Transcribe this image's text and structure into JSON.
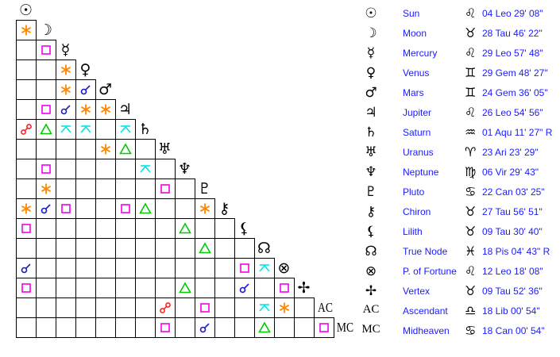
{
  "colors": {
    "conjunction": "#1a1acc",
    "opposition": "#ff2020",
    "trine": "#00cc00",
    "square": "#ee00ee",
    "sextile": "#ff8800",
    "quincunx": "#00e5e5",
    "legend_text": "#1a1aff"
  },
  "planets": [
    {
      "name": "Sun",
      "glyph": "☉",
      "icon": "sun-icon",
      "sign": "♌",
      "sign_icon": "leo-icon",
      "position": "04 Leo 29' 08\""
    },
    {
      "name": "Moon",
      "glyph": "☽",
      "icon": "moon-icon",
      "sign": "♉",
      "sign_icon": "taurus-icon",
      "position": "28 Tau 46' 22\""
    },
    {
      "name": "Mercury",
      "glyph": "☿",
      "icon": "mercury-icon",
      "sign": "♌",
      "sign_icon": "leo-icon",
      "position": "29 Leo 57' 48\""
    },
    {
      "name": "Venus",
      "glyph": "♀",
      "icon": "venus-icon",
      "sign": "♊",
      "sign_icon": "gemini-icon",
      "position": "29 Gem 48' 27\""
    },
    {
      "name": "Mars",
      "glyph": "♂",
      "icon": "mars-icon",
      "sign": "♊",
      "sign_icon": "gemini-icon",
      "position": "24 Gem 36' 05\""
    },
    {
      "name": "Jupiter",
      "glyph": "♃",
      "icon": "jupiter-icon",
      "sign": "♌",
      "sign_icon": "leo-icon",
      "position": "26 Leo 54' 56\""
    },
    {
      "name": "Saturn",
      "glyph": "♄",
      "icon": "saturn-icon",
      "sign": "♒",
      "sign_icon": "aquarius-icon",
      "position": "01 Aqu 11' 27\" R"
    },
    {
      "name": "Uranus",
      "glyph": "♅",
      "icon": "uranus-icon",
      "sign": "♈",
      "sign_icon": "aries-icon",
      "position": "23 Ari 23' 29\""
    },
    {
      "name": "Neptune",
      "glyph": "♆",
      "icon": "neptune-icon",
      "sign": "♍",
      "sign_icon": "virgo-icon",
      "position": "06 Vir 29' 43\""
    },
    {
      "name": "Pluto",
      "glyph": "♇",
      "icon": "pluto-icon",
      "sign": "♋",
      "sign_icon": "cancer-icon",
      "position": "22 Can 03' 25\""
    },
    {
      "name": "Chiron",
      "glyph": "⚷",
      "icon": "chiron-icon",
      "sign": "♉",
      "sign_icon": "taurus-icon",
      "position": "27 Tau 56' 51\""
    },
    {
      "name": "Lilith",
      "glyph": "⚸",
      "icon": "lilith-icon",
      "sign": "♉",
      "sign_icon": "taurus-icon",
      "position": "09 Tau 30' 40\""
    },
    {
      "name": "True Node",
      "glyph": "☊",
      "icon": "north-node-icon",
      "sign": "♓",
      "sign_icon": "pisces-icon",
      "position": "18 Pis 04' 43\" R"
    },
    {
      "name": "P. of Fortune",
      "glyph": "⊗",
      "icon": "part-of-fortune-icon",
      "sign": "♌",
      "sign_icon": "leo-icon",
      "position": "12 Leo 18' 08\""
    },
    {
      "name": "Vertex",
      "glyph": "✢",
      "icon": "vertex-icon",
      "sign": "♉",
      "sign_icon": "taurus-icon",
      "position": "09 Tau 52' 36\""
    },
    {
      "name": "Ascendant",
      "glyph": "AC",
      "icon": "ascendant-icon",
      "sign": "♎",
      "sign_icon": "libra-icon",
      "position": "18 Lib 00' 54\""
    },
    {
      "name": "Midheaven",
      "glyph": "MC",
      "icon": "midheaven-icon",
      "sign": "♋",
      "sign_icon": "cancer-icon",
      "position": "18 Can 00' 54\""
    }
  ],
  "aspects": [
    {
      "a": "Moon",
      "b": "Sun",
      "type": "sextile"
    },
    {
      "a": "Mercury",
      "b": "Moon",
      "type": "square"
    },
    {
      "a": "Venus",
      "b": "Mercury",
      "type": "sextile"
    },
    {
      "a": "Mars",
      "b": "Mercury",
      "type": "sextile"
    },
    {
      "a": "Mars",
      "b": "Venus",
      "type": "conjunction"
    },
    {
      "a": "Jupiter",
      "b": "Moon",
      "type": "square"
    },
    {
      "a": "Jupiter",
      "b": "Mercury",
      "type": "conjunction"
    },
    {
      "a": "Jupiter",
      "b": "Venus",
      "type": "sextile"
    },
    {
      "a": "Jupiter",
      "b": "Mars",
      "type": "sextile"
    },
    {
      "a": "Saturn",
      "b": "Sun",
      "type": "opposition"
    },
    {
      "a": "Saturn",
      "b": "Moon",
      "type": "trine"
    },
    {
      "a": "Saturn",
      "b": "Mercury",
      "type": "quincunx"
    },
    {
      "a": "Saturn",
      "b": "Venus",
      "type": "quincunx"
    },
    {
      "a": "Saturn",
      "b": "Jupiter",
      "type": "quincunx"
    },
    {
      "a": "Uranus",
      "b": "Mars",
      "type": "sextile"
    },
    {
      "a": "Uranus",
      "b": "Jupiter",
      "type": "trine"
    },
    {
      "a": "Neptune",
      "b": "Moon",
      "type": "square"
    },
    {
      "a": "Neptune",
      "b": "Saturn",
      "type": "quincunx"
    },
    {
      "a": "Pluto",
      "b": "Moon",
      "type": "sextile"
    },
    {
      "a": "Pluto",
      "b": "Uranus",
      "type": "square"
    },
    {
      "a": "Chiron",
      "b": "Sun",
      "type": "sextile"
    },
    {
      "a": "Chiron",
      "b": "Moon",
      "type": "conjunction"
    },
    {
      "a": "Chiron",
      "b": "Mercury",
      "type": "square"
    },
    {
      "a": "Chiron",
      "b": "Jupiter",
      "type": "square"
    },
    {
      "a": "Chiron",
      "b": "Saturn",
      "type": "trine"
    },
    {
      "a": "Chiron",
      "b": "Pluto",
      "type": "sextile"
    },
    {
      "a": "Lilith",
      "b": "Sun",
      "type": "square"
    },
    {
      "a": "Lilith",
      "b": "Neptune",
      "type": "trine"
    },
    {
      "a": "True Node",
      "b": "Pluto",
      "type": "trine"
    },
    {
      "a": "P. of Fortune",
      "b": "Sun",
      "type": "conjunction"
    },
    {
      "a": "P. of Fortune",
      "b": "Lilith",
      "type": "square"
    },
    {
      "a": "P. of Fortune",
      "b": "True Node",
      "type": "quincunx"
    },
    {
      "a": "Vertex",
      "b": "Sun",
      "type": "square"
    },
    {
      "a": "Vertex",
      "b": "Neptune",
      "type": "trine"
    },
    {
      "a": "Vertex",
      "b": "Lilith",
      "type": "conjunction"
    },
    {
      "a": "Vertex",
      "b": "P. of Fortune",
      "type": "square"
    },
    {
      "a": "Ascendant",
      "b": "Uranus",
      "type": "opposition"
    },
    {
      "a": "Ascendant",
      "b": "Pluto",
      "type": "square"
    },
    {
      "a": "Ascendant",
      "b": "True Node",
      "type": "quincunx"
    },
    {
      "a": "Ascendant",
      "b": "P. of Fortune",
      "type": "sextile"
    },
    {
      "a": "Midheaven",
      "b": "Uranus",
      "type": "square"
    },
    {
      "a": "Midheaven",
      "b": "Pluto",
      "type": "conjunction"
    },
    {
      "a": "Midheaven",
      "b": "True Node",
      "type": "trine"
    },
    {
      "a": "Midheaven",
      "b": "Ascendant",
      "type": "square"
    }
  ]
}
